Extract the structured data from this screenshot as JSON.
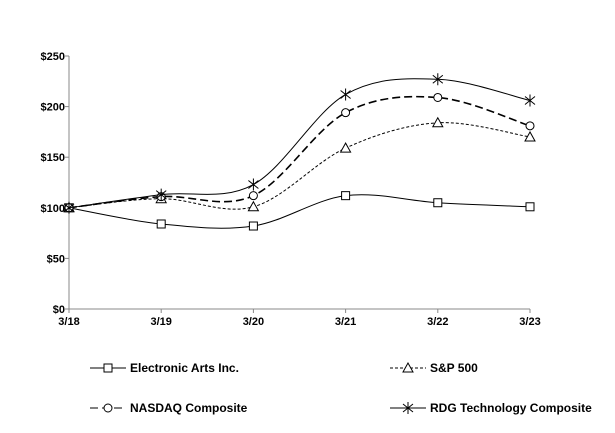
{
  "chart_data": {
    "type": "line",
    "title": "",
    "xlabel": "",
    "ylabel": "",
    "categories": [
      "3/18",
      "3/19",
      "3/20",
      "3/21",
      "3/22",
      "3/23"
    ],
    "ylim": [
      0,
      250
    ],
    "yticks": [
      "$0",
      "$50",
      "$100",
      "$150",
      "$200",
      "$250"
    ],
    "grid": false,
    "legend": "bottom",
    "smooth": true,
    "series": [
      {
        "name": "Electronic Arts Inc.",
        "values": [
          100,
          84,
          82,
          112,
          105,
          101
        ],
        "marker": "square",
        "dash": "solid",
        "color": "#000000"
      },
      {
        "name": "S&P 500",
        "values": [
          100,
          109,
          101,
          159,
          184,
          170
        ],
        "marker": "triangle",
        "dash": "dotted",
        "color": "#000000"
      },
      {
        "name": "NASDAQ Composite",
        "values": [
          100,
          111,
          112,
          194,
          209,
          181
        ],
        "marker": "circle",
        "dash": "dashed",
        "color": "#000000"
      },
      {
        "name": "RDG Technology Composite",
        "values": [
          100,
          113,
          123,
          212,
          227,
          206
        ],
        "marker": "asterisk",
        "dash": "solid",
        "color": "#000000"
      }
    ]
  }
}
